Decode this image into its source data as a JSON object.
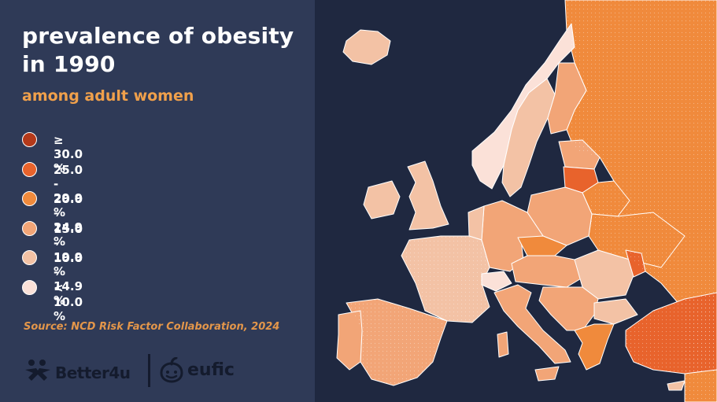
{
  "header": {
    "title_line1": "prevalence of obesity",
    "title_line2": "in 1990",
    "subtitle": "among adult women"
  },
  "legend": [
    {
      "label": "≥ 30.0 %",
      "color": "#b3391a"
    },
    {
      "label": "25.0 - 29.9 %",
      "color": "#e8632c"
    },
    {
      "label": "20.0 - 24.9 %",
      "color": "#f08a3c"
    },
    {
      "label": "15.0 - 19.9 %",
      "color": "#f2a577"
    },
    {
      "label": "10.0 - 14.9 %",
      "color": "#f3c2a5"
    },
    {
      "label": "< 10.0 %",
      "color": "#fbe1d8"
    }
  ],
  "source": "Source: NCD Risk Factor Collaboration, 2024",
  "logos": {
    "better4u": "Better4u",
    "eufic": "eufic"
  },
  "colors": {
    "sea": "#1f2840",
    "panel": "#2f3a57",
    "accent": "#f0a04b"
  },
  "map_regions": [
    {
      "name": "russia",
      "class": "20.0 - 24.9 %"
    },
    {
      "name": "iceland",
      "class": "10.0 - 14.9 %"
    },
    {
      "name": "norway",
      "class": "< 10.0 %"
    },
    {
      "name": "sweden",
      "class": "10.0 - 14.9 %"
    },
    {
      "name": "finland",
      "class": "15.0 - 19.9 %"
    },
    {
      "name": "uk",
      "class": "10.0 - 14.9 %"
    },
    {
      "name": "ireland",
      "class": "10.0 - 14.9 %"
    },
    {
      "name": "france",
      "class": "10.0 - 14.9 %"
    },
    {
      "name": "spain",
      "class": "15.0 - 19.9 %"
    },
    {
      "name": "portugal",
      "class": "15.0 - 19.9 %"
    },
    {
      "name": "italy",
      "class": "15.0 - 19.9 %"
    },
    {
      "name": "switzerland",
      "class": "< 10.0 %"
    },
    {
      "name": "germany",
      "class": "15.0 - 19.9 %"
    },
    {
      "name": "poland",
      "class": "15.0 - 19.9 %"
    },
    {
      "name": "czechia",
      "class": "20.0 - 24.9 %"
    },
    {
      "name": "lithuania",
      "class": "25.0 - 29.9 %"
    },
    {
      "name": "ukraine",
      "class": "20.0 - 24.9 %"
    },
    {
      "name": "belarus",
      "class": "20.0 - 24.9 %"
    },
    {
      "name": "romania",
      "class": "10.0 - 14.9 %"
    },
    {
      "name": "moldova",
      "class": "25.0 - 29.9 %"
    },
    {
      "name": "turkey",
      "class": "25.0 - 29.9 %"
    },
    {
      "name": "greece",
      "class": "15.0 - 19.9 %"
    },
    {
      "name": "balkans",
      "class": "15.0 - 19.9 %"
    }
  ]
}
